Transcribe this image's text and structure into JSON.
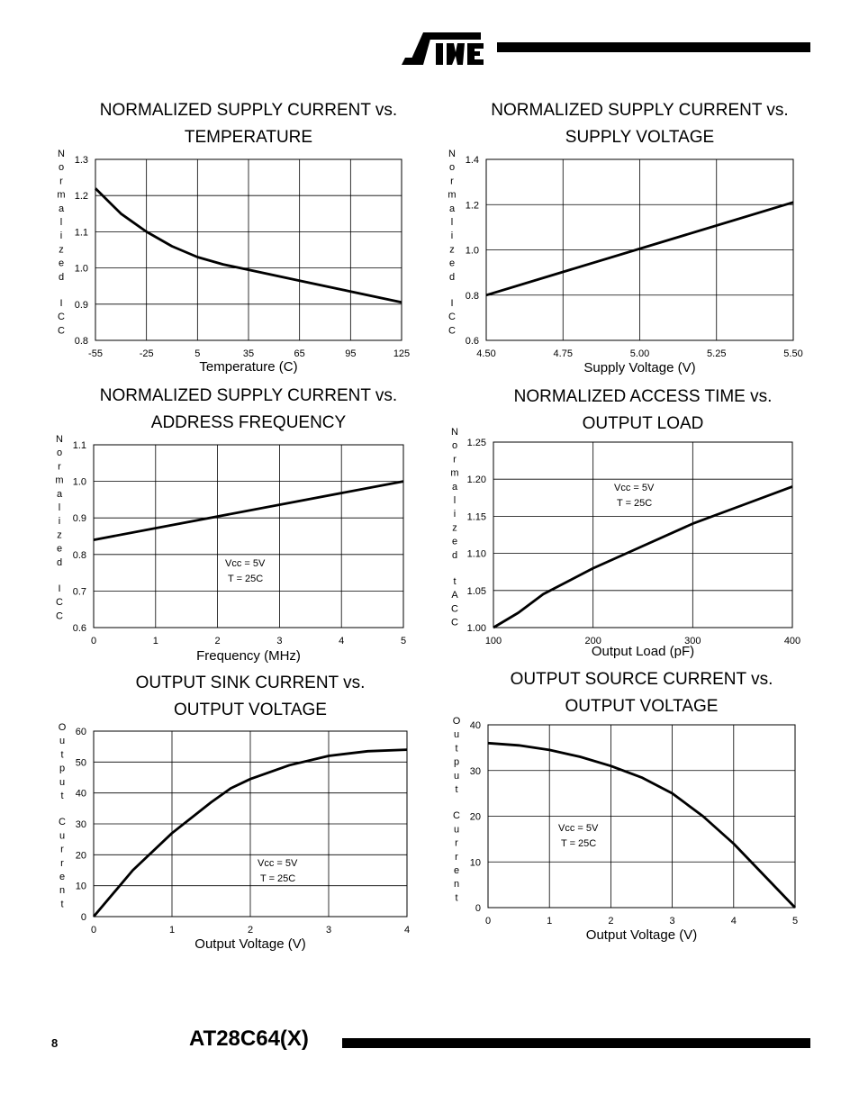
{
  "header": {
    "brand": "ATMEL"
  },
  "footer": {
    "page_number": "8",
    "document_title": "AT28C64(X)"
  },
  "chart_data": [
    {
      "type": "line",
      "title": [
        "NORMALIZED SUPPLY CURRENT vs.",
        "TEMPERATURE"
      ],
      "ylabel": "Normalized ICC",
      "xlabel": "Temperature (C)",
      "xlim": [
        -55,
        125
      ],
      "ylim": [
        0.8,
        1.3
      ],
      "xticks": [
        -55,
        -25,
        5,
        35,
        65,
        95,
        125
      ],
      "xtick_labels": [
        "-55",
        "-25",
        "5",
        "35",
        "65",
        "95",
        "125"
      ],
      "yticks": [
        0.8,
        0.9,
        1.0,
        1.1,
        1.2,
        1.3
      ],
      "ytick_labels": [
        "0.8",
        "0.9",
        "1.0",
        "1.1",
        "1.2",
        "1.3"
      ],
      "grid": true,
      "annotation": [],
      "series": [
        {
          "x": [
            -55,
            -40,
            -25,
            -10,
            5,
            20,
            35,
            65,
            95,
            125
          ],
          "y": [
            1.22,
            1.15,
            1.1,
            1.06,
            1.03,
            1.01,
            0.995,
            0.965,
            0.935,
            0.905
          ]
        }
      ]
    },
    {
      "type": "line",
      "title": [
        "NORMALIZED SUPPLY CURRENT vs.",
        "SUPPLY VOLTAGE"
      ],
      "ylabel": "Normalized ICC",
      "xlabel": "Supply Voltage (V)",
      "xlim": [
        4.5,
        5.5
      ],
      "ylim": [
        0.6,
        1.4
      ],
      "xticks": [
        4.5,
        4.75,
        5.0,
        5.25,
        5.5
      ],
      "xtick_labels": [
        "4.50",
        "4.75",
        "5.00",
        "5.25",
        "5.50"
      ],
      "yticks": [
        0.6,
        0.8,
        1.0,
        1.2,
        1.4
      ],
      "ytick_labels": [
        "0.6",
        "0.8",
        "1.0",
        "1.2",
        "1.4"
      ],
      "grid": true,
      "annotation": [],
      "series": [
        {
          "x": [
            4.5,
            5.5
          ],
          "y": [
            0.8,
            1.21
          ]
        }
      ]
    },
    {
      "type": "line",
      "title": [
        "NORMALIZED SUPPLY CURRENT vs.",
        "ADDRESS FREQUENCY"
      ],
      "ylabel": "Normalized ICC",
      "xlabel": "Frequency (MHz)",
      "xlim": [
        0,
        5
      ],
      "ylim": [
        0.6,
        1.1
      ],
      "xticks": [
        0,
        1,
        2,
        3,
        4,
        5
      ],
      "xtick_labels": [
        "0",
        "1",
        "2",
        "3",
        "4",
        "5"
      ],
      "yticks": [
        0.6,
        0.7,
        0.8,
        0.9,
        1.0,
        1.1
      ],
      "ytick_labels": [
        "0.6",
        "0.7",
        "0.8",
        "0.9",
        "1.0",
        "1.1"
      ],
      "grid": true,
      "annotation": [
        "Vcc = 5V",
        "T = 25C"
      ],
      "series": [
        {
          "x": [
            0,
            5
          ],
          "y": [
            0.84,
            1.0
          ]
        }
      ]
    },
    {
      "type": "line",
      "title": [
        "NORMALIZED ACCESS TIME vs.",
        "OUTPUT LOAD"
      ],
      "ylabel": "Normalized tACC",
      "xlabel": "Output Load (pF)",
      "xlim": [
        100,
        400
      ],
      "ylim": [
        1.0,
        1.25
      ],
      "xticks": [
        100,
        200,
        300,
        400
      ],
      "xtick_labels": [
        "100",
        "200",
        "300",
        "400"
      ],
      "yticks": [
        1.0,
        1.05,
        1.1,
        1.15,
        1.2,
        1.25
      ],
      "ytick_labels": [
        "1.00",
        "1.05",
        "1.10",
        "1.15",
        "1.20",
        "1.25"
      ],
      "grid": true,
      "annotation": [
        "Vcc = 5V",
        "T = 25C"
      ],
      "series": [
        {
          "x": [
            100,
            125,
            150,
            200,
            250,
            300,
            350,
            400
          ],
          "y": [
            1.0,
            1.02,
            1.045,
            1.08,
            1.11,
            1.14,
            1.165,
            1.19
          ]
        }
      ]
    },
    {
      "type": "line",
      "title": [
        "OUTPUT SINK CURRENT vs.",
        "OUTPUT VOLTAGE"
      ],
      "ylabel": "Output Current",
      "xlabel": "Output Voltage (V)",
      "xlim": [
        0,
        4
      ],
      "ylim": [
        0,
        60
      ],
      "xticks": [
        0,
        1,
        2,
        3,
        4
      ],
      "xtick_labels": [
        "0",
        "1",
        "2",
        "3",
        "4"
      ],
      "yticks": [
        0,
        10,
        20,
        30,
        40,
        50,
        60
      ],
      "ytick_labels": [
        "0",
        "10",
        "20",
        "30",
        "40",
        "50",
        "60"
      ],
      "grid": true,
      "annotation": [
        "Vcc = 5V",
        "T = 25C"
      ],
      "series": [
        {
          "x": [
            0,
            0.5,
            1.0,
            1.5,
            1.75,
            2.0,
            2.5,
            3.0,
            3.5,
            4.0
          ],
          "y": [
            0,
            15,
            27,
            37,
            41.5,
            44.5,
            49,
            52,
            53.5,
            54
          ]
        }
      ]
    },
    {
      "type": "line",
      "title": [
        "OUTPUT SOURCE CURRENT vs.",
        "OUTPUT VOLTAGE"
      ],
      "ylabel": "Output Current",
      "xlabel": "Output Voltage (V)",
      "xlim": [
        0,
        5
      ],
      "ylim": [
        0,
        40
      ],
      "xticks": [
        0,
        1,
        2,
        3,
        4,
        5
      ],
      "xtick_labels": [
        "0",
        "1",
        "2",
        "3",
        "4",
        "5"
      ],
      "yticks": [
        0,
        10,
        20,
        30,
        40
      ],
      "ytick_labels": [
        "0",
        "10",
        "20",
        "30",
        "40"
      ],
      "grid": true,
      "annotation": [
        "Vcc = 5V",
        "T = 25C"
      ],
      "series": [
        {
          "x": [
            0,
            0.5,
            1.0,
            1.5,
            2.0,
            2.5,
            3.0,
            3.5,
            4.0,
            4.5,
            5.0
          ],
          "y": [
            36,
            35.5,
            34.5,
            33,
            31,
            28.5,
            25,
            20,
            14,
            7,
            0
          ]
        }
      ]
    }
  ]
}
